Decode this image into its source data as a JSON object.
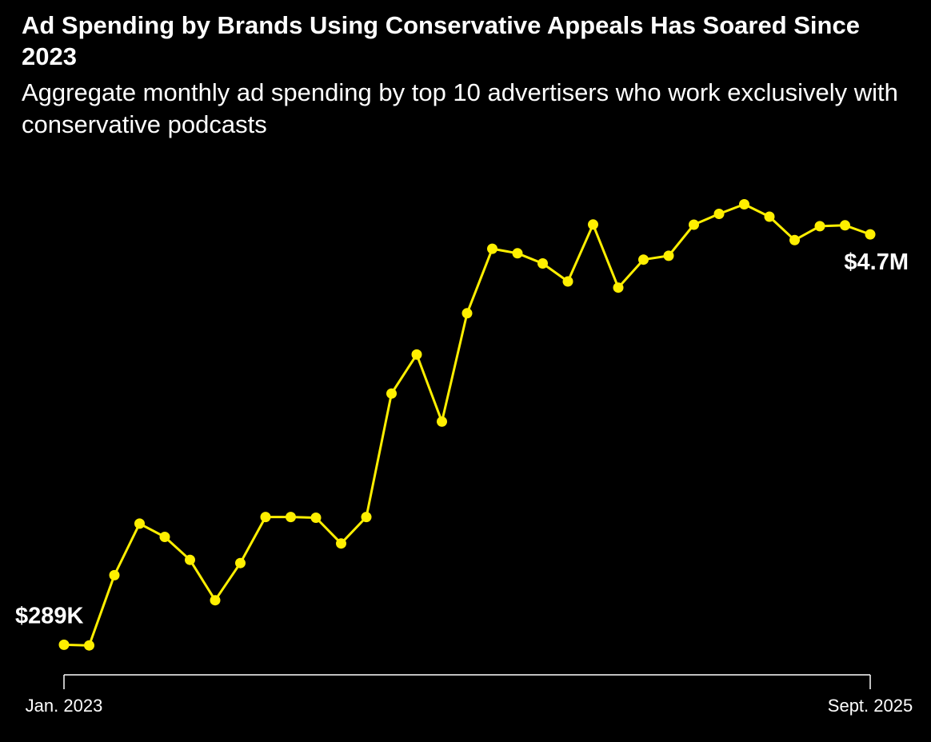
{
  "chart_data": {
    "type": "line",
    "title": "Ad Spending by Brands Using Conservative Appeals Has Soared Since 2023",
    "subtitle": "Aggregate monthly ad spending by top 10 advertisers who work exclusively with conservative podcasts",
    "xlabel": "",
    "ylabel": "",
    "x_tick_labels": [
      "Jan. 2023",
      "Sept. 2025"
    ],
    "x": [
      "Jan. 2023",
      "Feb. 2023",
      "Mar. 2023",
      "Apr. 2023",
      "May 2023",
      "Jun. 2023",
      "Jul. 2023",
      "Aug. 2023",
      "Sep. 2023",
      "Oct. 2023",
      "Nov. 2023",
      "Dec. 2023",
      "Jan. 2024",
      "Feb. 2024",
      "Mar. 2024",
      "Apr. 2024",
      "May 2024",
      "Jun. 2024",
      "Jul. 2024",
      "Aug. 2024",
      "Sep. 2024",
      "Oct. 2024",
      "Nov. 2024",
      "Dec. 2024",
      "Jan. 2025",
      "Feb. 2025",
      "Mar. 2025",
      "Apr. 2025",
      "May 2025",
      "Jun. 2025",
      "Jul. 2025",
      "Aug. 2025",
      "Sep. 2025"
    ],
    "series": [
      {
        "name": "Monthly ad spending (USD)",
        "color": "#ffef00",
        "values": [
          289000,
          282000,
          1036000,
          1591000,
          1448000,
          1201000,
          767000,
          1167000,
          1662000,
          1662000,
          1654000,
          1378000,
          1662000,
          2989000,
          3408000,
          2687000,
          3852000,
          4545000,
          4496000,
          4387000,
          4194000,
          4806000,
          4128000,
          4428000,
          4470000,
          4804000,
          4920000,
          5023000,
          4890000,
          4638000,
          4788000,
          4797000,
          4700000
        ]
      }
    ],
    "annotations": [
      {
        "label": "$289K",
        "index": 0
      },
      {
        "label": "$4.7M",
        "index": 32
      }
    ],
    "ylim": [
      0,
      5500000
    ],
    "grid": false,
    "legend": "none"
  }
}
